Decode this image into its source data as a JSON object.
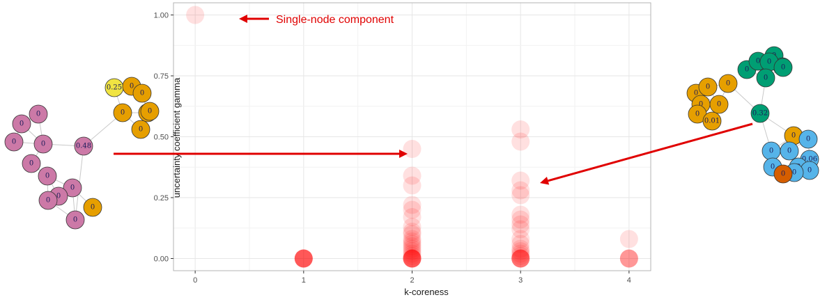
{
  "chart_data": {
    "type": "scatter",
    "title": "",
    "xlabel": "k-coreness",
    "ylabel": "uncertainty coefficient gamma",
    "xlim": [
      -0.2,
      4.2
    ],
    "ylim": [
      -0.05,
      1.05
    ],
    "x_ticks": [
      0,
      1,
      2,
      3,
      4
    ],
    "y_ticks": [
      0.0,
      0.25,
      0.5,
      0.75,
      1.0
    ],
    "x_tick_labels": [
      "0",
      "1",
      "2",
      "3",
      "4"
    ],
    "y_tick_labels": [
      "0.00",
      "0.25",
      "0.50",
      "0.75",
      "1.00"
    ],
    "grid": true,
    "point_color": "#ff0000",
    "points": [
      {
        "x": 0,
        "y": 1.0
      },
      {
        "x": 1,
        "y": 0
      },
      {
        "x": 1,
        "y": 0
      },
      {
        "x": 1,
        "y": 0
      },
      {
        "x": 1,
        "y": 0
      },
      {
        "x": 1,
        "y": 0
      },
      {
        "x": 1,
        "y": 0
      },
      {
        "x": 1,
        "y": 0
      },
      {
        "x": 1,
        "y": 0
      },
      {
        "x": 2,
        "y": 0.45
      },
      {
        "x": 2,
        "y": 0.34
      },
      {
        "x": 2,
        "y": 0.3
      },
      {
        "x": 2,
        "y": 0.22
      },
      {
        "x": 2,
        "y": 0.2
      },
      {
        "x": 2,
        "y": 0.17
      },
      {
        "x": 2,
        "y": 0.13
      },
      {
        "x": 2,
        "y": 0.11
      },
      {
        "x": 2,
        "y": 0.1
      },
      {
        "x": 2,
        "y": 0.08
      },
      {
        "x": 2,
        "y": 0.07
      },
      {
        "x": 2,
        "y": 0.06
      },
      {
        "x": 2,
        "y": 0.05
      },
      {
        "x": 2,
        "y": 0.04
      },
      {
        "x": 2,
        "y": 0.03
      },
      {
        "x": 2,
        "y": 0.02
      },
      {
        "x": 2,
        "y": 0.01
      },
      {
        "x": 2,
        "y": 0
      },
      {
        "x": 2,
        "y": 0
      },
      {
        "x": 2,
        "y": 0
      },
      {
        "x": 2,
        "y": 0
      },
      {
        "x": 2,
        "y": 0
      },
      {
        "x": 2,
        "y": 0
      },
      {
        "x": 2,
        "y": 0
      },
      {
        "x": 2,
        "y": 0
      },
      {
        "x": 3,
        "y": 0.53
      },
      {
        "x": 3,
        "y": 0.48
      },
      {
        "x": 3,
        "y": 0.32
      },
      {
        "x": 3,
        "y": 0.28
      },
      {
        "x": 3,
        "y": 0.26
      },
      {
        "x": 3,
        "y": 0.18
      },
      {
        "x": 3,
        "y": 0.16
      },
      {
        "x": 3,
        "y": 0.14
      },
      {
        "x": 3,
        "y": 0.12
      },
      {
        "x": 3,
        "y": 0.08
      },
      {
        "x": 3,
        "y": 0.06
      },
      {
        "x": 3,
        "y": 0.04
      },
      {
        "x": 3,
        "y": 0.03
      },
      {
        "x": 3,
        "y": 0.02
      },
      {
        "x": 3,
        "y": 0.01
      },
      {
        "x": 3,
        "y": 0
      },
      {
        "x": 3,
        "y": 0
      },
      {
        "x": 3,
        "y": 0
      },
      {
        "x": 3,
        "y": 0
      },
      {
        "x": 3,
        "y": 0
      },
      {
        "x": 3,
        "y": 0
      },
      {
        "x": 4,
        "y": 0.08
      },
      {
        "x": 4,
        "y": 0
      },
      {
        "x": 4,
        "y": 0
      },
      {
        "x": 4,
        "y": 0
      },
      {
        "x": 4,
        "y": 0
      }
    ],
    "annotation": "Single-node component"
  },
  "networks": {
    "left": {
      "edge_color": "#c8c8c8",
      "nodes": [
        {
          "label": "0.25",
          "color": "#f0e442"
        },
        {
          "label": "0",
          "color": "#e69f00"
        },
        {
          "label": "0",
          "color": "#e69f00"
        },
        {
          "label": "0",
          "color": "#e69f00"
        },
        {
          "label": "0",
          "color": "#e69f00"
        },
        {
          "label": "0",
          "color": "#e69f00"
        },
        {
          "label": "0",
          "color": "#e69f00"
        },
        {
          "label": "0",
          "color": "#cc79a7"
        },
        {
          "label": "0",
          "color": "#cc79a7"
        },
        {
          "label": "0",
          "color": "#cc79a7"
        },
        {
          "label": "0.48",
          "color": "#cc79a7"
        },
        {
          "label": "0",
          "color": "#cc79a7"
        },
        {
          "label": "0",
          "color": "#cc79a7"
        },
        {
          "label": "0",
          "color": "#cc79a7"
        },
        {
          "label": "0",
          "color": "#cc79a7"
        },
        {
          "label": "0",
          "color": "#cc79a7"
        },
        {
          "label": "0",
          "color": "#cc79a7"
        },
        {
          "label": "0",
          "color": "#cc79a7"
        },
        {
          "label": "0",
          "color": "#e69f00"
        }
      ]
    },
    "right": {
      "edge_color": "#c8c8c8",
      "nodes": [
        {
          "label": "0",
          "color": "#009e73"
        },
        {
          "label": "0",
          "color": "#009e73"
        },
        {
          "label": "0",
          "color": "#009e73"
        },
        {
          "label": "0",
          "color": "#009e73"
        },
        {
          "label": "0",
          "color": "#009e73"
        },
        {
          "label": "0",
          "color": "#009e73"
        },
        {
          "label": "0",
          "color": "#009e73"
        },
        {
          "label": "0.32",
          "color": "#009e73"
        },
        {
          "label": "0",
          "color": "#e69f00"
        },
        {
          "label": "0",
          "color": "#e69f00"
        },
        {
          "label": "0",
          "color": "#e69f00"
        },
        {
          "label": "0",
          "color": "#e69f00"
        },
        {
          "label": "0",
          "color": "#e69f00"
        },
        {
          "label": "0",
          "color": "#e69f00"
        },
        {
          "label": "0.01",
          "color": "#e69f00"
        },
        {
          "label": "0",
          "color": "#e69f00"
        },
        {
          "label": "0",
          "color": "#56b4e9"
        },
        {
          "label": "0",
          "color": "#56b4e9"
        },
        {
          "label": "0",
          "color": "#56b4e9"
        },
        {
          "label": "0.06",
          "color": "#56b4e9"
        },
        {
          "label": "0",
          "color": "#56b4e9"
        },
        {
          "label": "0",
          "color": "#56b4e9"
        },
        {
          "label": "0",
          "color": "#56b4e9"
        },
        {
          "label": "0",
          "color": "#56b4e9"
        },
        {
          "label": "0",
          "color": "#d55e00"
        }
      ]
    }
  },
  "arrow_color": "#e00000"
}
